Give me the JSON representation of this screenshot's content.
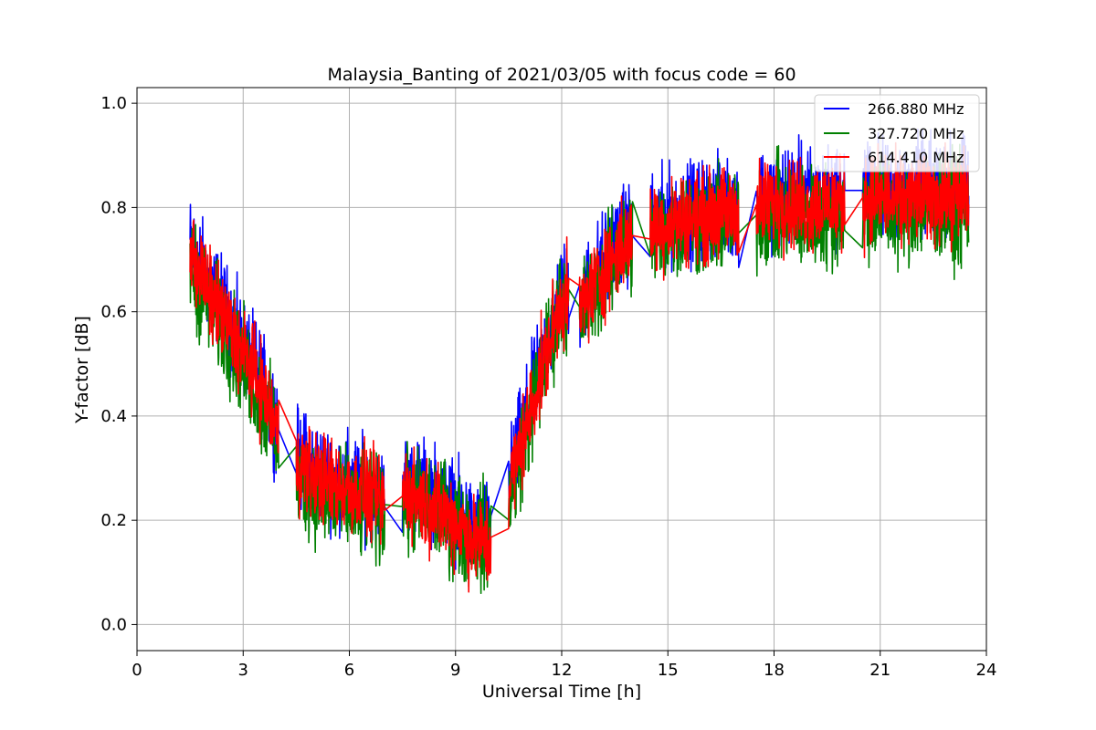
{
  "chart_data": {
    "type": "line",
    "title": "Malaysia_Banting of 2021/03/05 with focus code = 60",
    "xlabel": "Universal Time [h]",
    "ylabel": "Y-factor [dB]",
    "xlim": [
      0,
      24
    ],
    "ylim": [
      -0.05,
      1.03
    ],
    "xticks": [
      0,
      3,
      6,
      9,
      12,
      15,
      18,
      21,
      24
    ],
    "yticks": [
      0.0,
      0.2,
      0.4,
      0.6,
      0.8,
      1.0
    ],
    "xtick_labels": [
      "0",
      "3",
      "6",
      "9",
      "12",
      "15",
      "18",
      "21",
      "24"
    ],
    "ytick_labels": [
      "0.0",
      "0.2",
      "0.4",
      "0.6",
      "0.8",
      "1.0"
    ],
    "grid": true,
    "legend_position": "top-right",
    "series": [
      {
        "name": "266.880 MHz",
        "color": "#0000ff",
        "x": [
          1.5,
          2.0,
          2.5,
          3.0,
          3.5,
          4.0,
          4.5,
          5.0,
          5.5,
          6.0,
          6.5,
          7.0,
          7.5,
          8.0,
          8.5,
          9.0,
          9.5,
          10.0,
          10.5,
          11.0,
          11.5,
          12.0,
          12.5,
          13.0,
          13.5,
          14.0,
          14.5,
          15.0,
          15.5,
          16.0,
          16.5,
          17.0,
          17.5,
          18.0,
          18.5,
          19.0,
          19.5,
          20.0,
          20.5,
          21.0,
          21.5,
          22.0,
          22.5,
          23.0,
          23.5
        ],
        "y": [
          0.73,
          0.66,
          0.6,
          0.53,
          0.47,
          0.38,
          0.32,
          0.3,
          0.28,
          0.27,
          0.26,
          0.24,
          0.27,
          0.26,
          0.25,
          0.22,
          0.18,
          0.18,
          0.27,
          0.4,
          0.52,
          0.64,
          0.62,
          0.68,
          0.73,
          0.76,
          0.77,
          0.78,
          0.79,
          0.8,
          0.8,
          0.8,
          0.82,
          0.82,
          0.83,
          0.82,
          0.82,
          0.83,
          0.84,
          0.84,
          0.83,
          0.84,
          0.84,
          0.84,
          0.84
        ]
      },
      {
        "name": "327.720 MHz",
        "color": "#008000",
        "x": [
          1.5,
          2.0,
          2.5,
          3.0,
          3.5,
          4.0,
          4.5,
          5.0,
          5.5,
          6.0,
          6.5,
          7.0,
          7.5,
          8.0,
          8.5,
          9.0,
          9.5,
          10.0,
          10.5,
          11.0,
          11.5,
          12.0,
          12.5,
          13.0,
          13.5,
          14.0,
          14.5,
          15.0,
          15.5,
          16.0,
          16.5,
          17.0,
          17.5,
          18.0,
          18.5,
          19.0,
          19.5,
          20.0,
          20.5,
          21.0,
          21.5,
          22.0,
          22.5,
          23.0,
          23.5
        ],
        "y": [
          0.68,
          0.62,
          0.56,
          0.5,
          0.43,
          0.35,
          0.28,
          0.26,
          0.24,
          0.23,
          0.22,
          0.22,
          0.23,
          0.23,
          0.22,
          0.19,
          0.17,
          0.17,
          0.24,
          0.37,
          0.5,
          0.63,
          0.59,
          0.65,
          0.7,
          0.74,
          0.74,
          0.76,
          0.77,
          0.77,
          0.77,
          0.77,
          0.78,
          0.79,
          0.79,
          0.78,
          0.78,
          0.79,
          0.79,
          0.8,
          0.79,
          0.8,
          0.8,
          0.79,
          0.79
        ]
      },
      {
        "name": "614.410 MHz",
        "color": "#ff0000",
        "x": [
          1.5,
          2.0,
          2.5,
          3.0,
          3.5,
          4.0,
          4.5,
          5.0,
          5.5,
          6.0,
          6.5,
          7.0,
          7.5,
          8.0,
          8.5,
          9.0,
          9.5,
          10.0,
          10.5,
          11.0,
          11.5,
          12.0,
          12.5,
          13.0,
          13.5,
          14.0,
          14.5,
          15.0,
          15.5,
          16.0,
          16.5,
          17.0,
          17.5,
          18.0,
          18.5,
          19.0,
          19.5,
          20.0,
          20.5,
          21.0,
          21.5,
          22.0,
          22.5,
          23.0,
          23.5
        ],
        "y": [
          0.72,
          0.64,
          0.58,
          0.52,
          0.46,
          0.36,
          0.31,
          0.29,
          0.27,
          0.26,
          0.25,
          0.23,
          0.26,
          0.24,
          0.22,
          0.2,
          0.16,
          0.15,
          0.26,
          0.38,
          0.5,
          0.63,
          0.6,
          0.66,
          0.71,
          0.74,
          0.76,
          0.77,
          0.78,
          0.78,
          0.79,
          0.79,
          0.8,
          0.81,
          0.81,
          0.8,
          0.81,
          0.81,
          0.82,
          0.82,
          0.81,
          0.82,
          0.82,
          0.82,
          0.82
        ]
      }
    ]
  }
}
